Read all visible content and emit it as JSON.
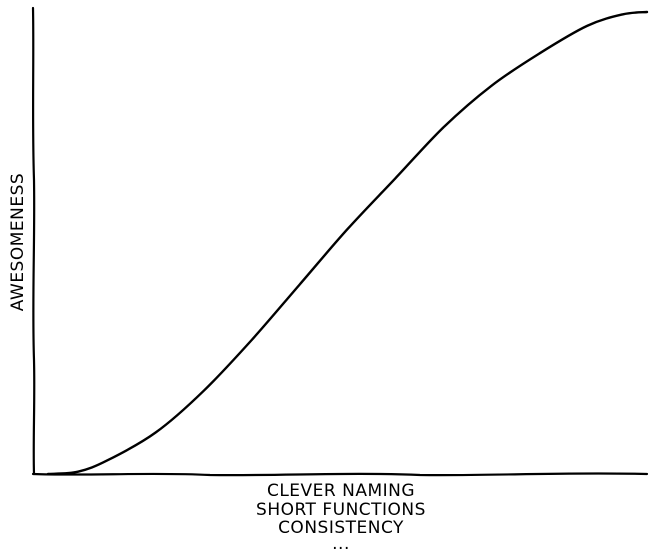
{
  "chart_data": {
    "type": "line",
    "title": "",
    "ylabel": "AWESOMENESS",
    "xlabel_lines": [
      "CLEVER NAMING",
      "SHORT FUNCTIONS",
      "CONSISTENCY",
      "..."
    ],
    "xlim": [
      0,
      1
    ],
    "ylim": [
      0,
      1
    ],
    "grid": false,
    "series": [
      {
        "x": [
          0,
          0.05,
          0.1,
          0.18,
          0.26,
          0.34,
          0.42,
          0.5,
          0.58,
          0.66,
          0.74,
          0.82,
          0.9,
          0.96,
          1.0
        ],
        "y": [
          0,
          0.005,
          0.03,
          0.09,
          0.18,
          0.29,
          0.41,
          0.53,
          0.64,
          0.75,
          0.84,
          0.91,
          0.97,
          0.995,
          1.0
        ]
      }
    ]
  }
}
